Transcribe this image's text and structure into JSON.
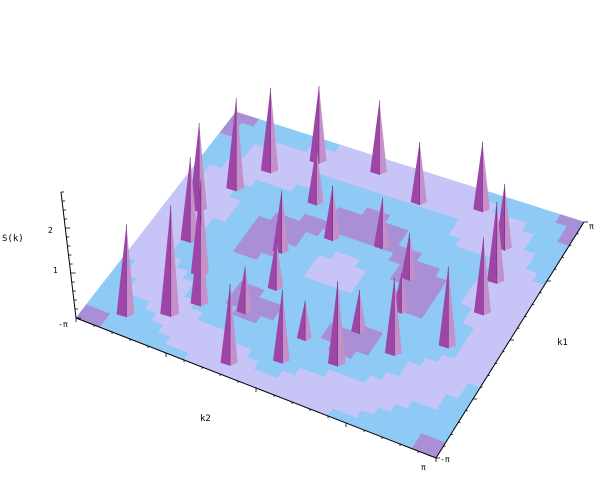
{
  "chart_data": {
    "type": "surface3d",
    "title": "",
    "zlabel": "S(k)",
    "xlabel": "k2",
    "ylabel": "k1",
    "zticks": [
      "1",
      "2"
    ],
    "zlim": [
      0,
      2.8
    ],
    "x_tick_labels": [
      "-π",
      "π"
    ],
    "y_tick_labels": [
      "-π",
      "π"
    ],
    "surface_colors": [
      "#8fc9f5",
      "#c7c4f7",
      "#a98fd6"
    ],
    "peak_colors": [
      "#9d46a8",
      "#c58fc8",
      "#7a2f8a"
    ],
    "peaks": [
      {
        "k1": -2.6,
        "k2": -2.5,
        "h": 2.4
      },
      {
        "k1": -2.2,
        "k2": -1.9,
        "h": 2.9
      },
      {
        "k1": -1.7,
        "k2": -1.6,
        "h": 2.3
      },
      {
        "k1": -1.0,
        "k2": -1.9,
        "h": 2.5
      },
      {
        "k1": -0.3,
        "k2": -2.4,
        "h": 2.2
      },
      {
        "k1": 0.5,
        "k2": -2.6,
        "h": 2.3
      },
      {
        "k1": 1.3,
        "k2": -2.3,
        "h": 2.4
      },
      {
        "k1": 2.0,
        "k2": -2.0,
        "h": 2.2
      },
      {
        "k1": 2.6,
        "k2": -1.4,
        "h": 2.0
      },
      {
        "k1": -2.8,
        "k2": -0.6,
        "h": 2.1
      },
      {
        "k1": -2.3,
        "k2": 0.1,
        "h": 1.9
      },
      {
        "k1": -1.9,
        "k2": 0.9,
        "h": 2.2
      },
      {
        "k1": -1.2,
        "k2": 1.6,
        "h": 2.0
      },
      {
        "k1": -0.6,
        "k2": 2.3,
        "h": 2.1
      },
      {
        "k1": 0.4,
        "k2": 2.5,
        "h": 2.0
      },
      {
        "k1": 1.2,
        "k2": 2.4,
        "h": 2.1
      },
      {
        "k1": 2.0,
        "k2": 2.2,
        "h": 1.7
      },
      {
        "k1": 2.7,
        "k2": 1.5,
        "h": 1.8
      },
      {
        "k1": 2.4,
        "k2": 0.5,
        "h": 1.6
      },
      {
        "k1": 2.8,
        "k2": -0.4,
        "h": 1.9
      },
      {
        "k1": -1.5,
        "k2": -0.9,
        "h": 1.2
      },
      {
        "k1": -0.7,
        "k2": -0.7,
        "h": 1.3
      },
      {
        "k1": 0.2,
        "k2": -1.0,
        "h": 1.6
      },
      {
        "k1": 0.9,
        "k2": -0.4,
        "h": 1.4
      },
      {
        "k1": 1.1,
        "k2": 0.4,
        "h": 1.3
      },
      {
        "k1": 0.6,
        "k2": 1.1,
        "h": 1.2
      },
      {
        "k1": -0.2,
        "k2": 1.3,
        "h": 1.0
      },
      {
        "k1": -1.0,
        "k2": 0.9,
        "h": 1.1
      },
      {
        "k1": -1.6,
        "k2": 0.2,
        "h": 1.0
      },
      {
        "k1": 1.6,
        "k2": -1.0,
        "h": 1.5
      }
    ]
  }
}
